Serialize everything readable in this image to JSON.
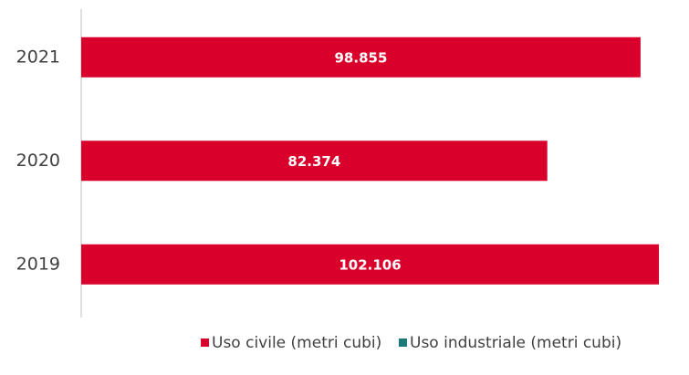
{
  "chart_data": {
    "type": "stacked_barh",
    "categories": [
      "2021",
      "2020",
      "2019"
    ],
    "series": [
      {
        "name": "Uso civile (metri cubi)",
        "color": "#d9002c",
        "values": [
          98855,
          82374,
          102106
        ],
        "value_labels": [
          "98.855",
          "82.374",
          "102.106"
        ]
      },
      {
        "name": "Uso industriale (metri cubi)",
        "color": "#1b7a78",
        "values": [
          0,
          0,
          0
        ]
      }
    ],
    "legend": "bottom"
  }
}
